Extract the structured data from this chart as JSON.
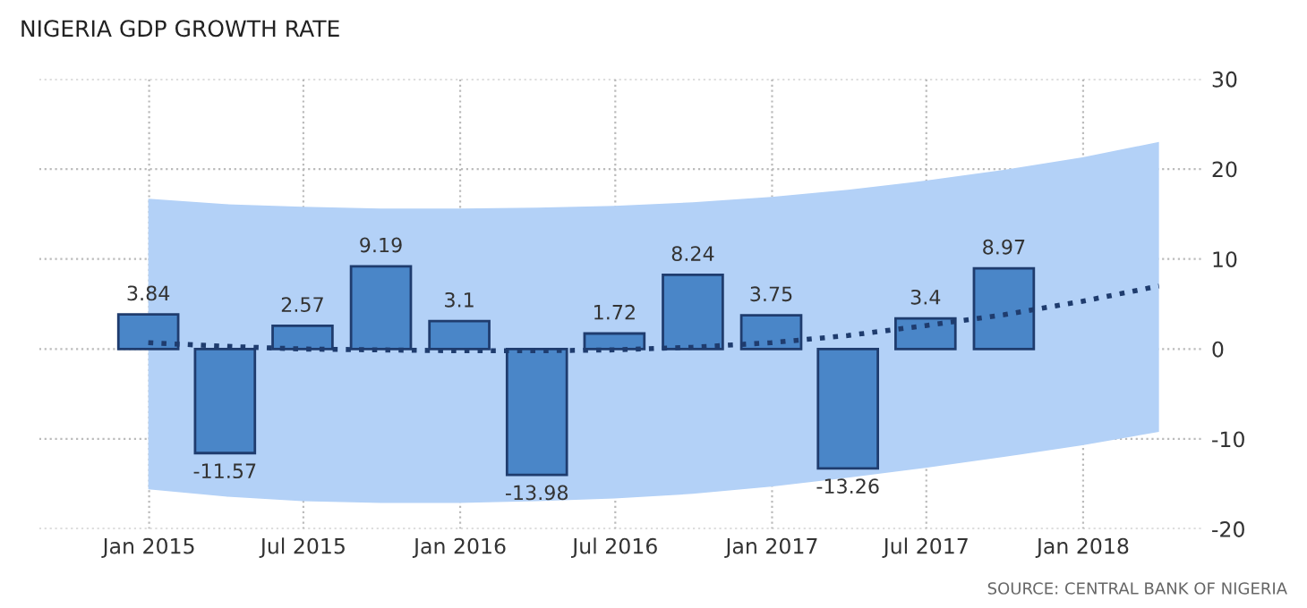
{
  "chart_data": {
    "type": "bar",
    "title": "NIGERIA GDP GROWTH RATE",
    "series": [
      {
        "color": "#4a86c8",
        "x": [
          "2014-12-31",
          "2015-03-31",
          "2015-06-30",
          "2015-09-30",
          "2015-12-31",
          "2016-03-31",
          "2016-06-30",
          "2016-09-30",
          "2016-12-31",
          "2017-03-31",
          "2017-06-30",
          "2017-09-30"
        ],
        "values": [
          3.84,
          -11.57,
          2.57,
          9.19,
          3.1,
          -13.98,
          1.72,
          8.24,
          3.75,
          -13.26,
          3.4,
          8.97
        ],
        "value_labels": [
          "3.84",
          "-11.57",
          "2.57",
          "9.19",
          "3.1",
          "-13.98",
          "1.72",
          "8.24",
          "3.75",
          "-13.26",
          "3.4",
          "8.97"
        ]
      },
      {
        "type": "line",
        "color": "#1f3c6e",
        "line_style": "dotted",
        "x": [
          "2014-12-31",
          "2015-03-31",
          "2015-06-30",
          "2015-09-30",
          "2015-12-31",
          "2016-03-31",
          "2016-06-30",
          "2016-09-30",
          "2016-12-31",
          "2017-03-31",
          "2017-06-30",
          "2017-09-30",
          "2017-12-31",
          "2018-03-31"
        ],
        "values": [
          0.7,
          0.3,
          0.0,
          -0.1,
          -0.2,
          -0.2,
          -0.1,
          0.2,
          0.7,
          1.5,
          2.6,
          3.8,
          5.3,
          7.0
        ],
        "lower": [
          -15.6,
          -16.4,
          -16.9,
          -17.1,
          -17.1,
          -16.9,
          -16.6,
          -16.1,
          -15.3,
          -14.3,
          -13.2,
          -12.0,
          -10.7,
          -9.2
        ],
        "upper": [
          16.7,
          16.1,
          15.8,
          15.6,
          15.6,
          15.7,
          15.9,
          16.3,
          16.9,
          17.7,
          18.7,
          19.9,
          21.3,
          23.0
        ]
      }
    ],
    "xlim": [
      "2014-08-25",
      "2018-05-21"
    ],
    "xticks": [
      {
        "value": "2015-01-01",
        "label": "Jan 2015"
      },
      {
        "value": "2015-07-01",
        "label": "Jul 2015"
      },
      {
        "value": "2016-01-01",
        "label": "Jan 2016"
      },
      {
        "value": "2016-07-01",
        "label": "Jul 2016"
      },
      {
        "value": "2017-01-01",
        "label": "Jan 2017"
      },
      {
        "value": "2017-07-01",
        "label": "Jul 2017"
      },
      {
        "value": "2018-01-01",
        "label": "Jan 2018"
      }
    ],
    "ylim": [
      -20,
      30
    ],
    "yticks": [
      -20,
      -10,
      0,
      10,
      20,
      30
    ],
    "grid": true,
    "annotations": [
      "SOURCE: CENTRAL BANK OF NIGERIA"
    ]
  }
}
